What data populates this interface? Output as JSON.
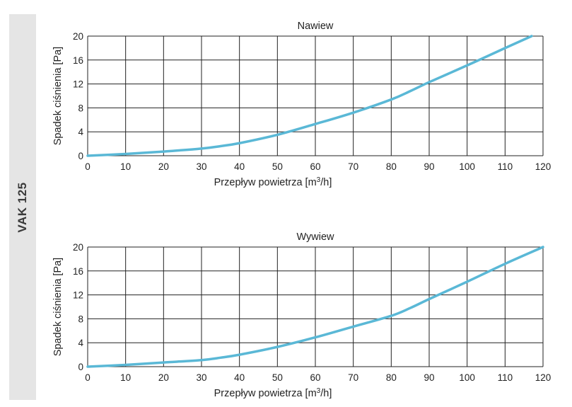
{
  "sidebar": {
    "label": "VAK 125"
  },
  "chart_data": [
    {
      "type": "line",
      "title": "Nawiew",
      "xlabel": "Przepływ powietrza [m3/h]",
      "xlabel_parts": {
        "main": "Przepływ powietrza [m",
        "sup": "3",
        "tail": "/h]"
      },
      "ylabel": "Spadek ciśnienia [Pa]",
      "xlim": [
        0,
        120
      ],
      "ylim": [
        0,
        20
      ],
      "xticks": [
        "0",
        "10",
        "20",
        "30",
        "40",
        "50",
        "60",
        "70",
        "80",
        "90",
        "100",
        "110",
        "120"
      ],
      "yticks": [
        "0",
        "4",
        "8",
        "12",
        "16",
        "20"
      ],
      "grid": true,
      "series": [
        {
          "color": "#5ab8d6",
          "x": [
            0,
            10,
            20,
            30,
            35,
            40,
            50,
            60,
            70,
            80,
            85,
            90,
            100,
            110,
            117
          ],
          "y": [
            0,
            0.3,
            0.7,
            1.2,
            1.6,
            2.1,
            3.5,
            5.3,
            7.2,
            9.4,
            10.8,
            12.3,
            15.1,
            18.0,
            20.0
          ]
        }
      ]
    },
    {
      "type": "line",
      "title": "Wywiew",
      "xlabel": "Przepływ powietrza [m3/h]",
      "xlabel_parts": {
        "main": "Przepływ powietrza [m",
        "sup": "3",
        "tail": "/h]"
      },
      "ylabel": "Spadek ciśnienia [Pa]",
      "xlim": [
        0,
        120
      ],
      "ylim": [
        0,
        20
      ],
      "xticks": [
        "0",
        "10",
        "20",
        "30",
        "40",
        "50",
        "60",
        "70",
        "80",
        "90",
        "100",
        "110",
        "120"
      ],
      "yticks": [
        "0",
        "4",
        "8",
        "12",
        "16",
        "20"
      ],
      "grid": true,
      "series": [
        {
          "color": "#5ab8d6",
          "x": [
            0,
            10,
            20,
            30,
            35,
            40,
            50,
            60,
            70,
            80,
            85,
            90,
            100,
            110,
            120
          ],
          "y": [
            0,
            0.3,
            0.7,
            1.1,
            1.5,
            2.0,
            3.3,
            4.9,
            6.7,
            8.5,
            9.8,
            11.3,
            14.2,
            17.2,
            20.0
          ]
        }
      ]
    }
  ]
}
